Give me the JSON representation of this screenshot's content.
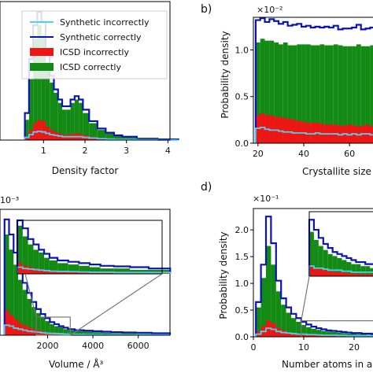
{
  "figure": {
    "panel_labels": [
      "b)",
      "d)"
    ],
    "legend_items": [
      {
        "label": "Synthetic incorrectly",
        "kind": "line",
        "color": "#4fd0f0"
      },
      {
        "label": "Synthetic correctly",
        "kind": "line",
        "color": "#0a14b4"
      },
      {
        "label": "ICSD incorrectly",
        "kind": "patch",
        "color": "#f01414"
      },
      {
        "label": "ICSD correctly",
        "kind": "patch",
        "color": "#138a13"
      }
    ]
  },
  "chart_data": [
    {
      "id": "a",
      "type": "bar",
      "xlabel": "Density factor",
      "ylabel": "",
      "x_ticks": [
        "1",
        "2",
        "3",
        "4"
      ],
      "y_ticks": [],
      "xlim": [
        0.0,
        4.0
      ],
      "series": [
        {
          "name": "ICSD correctly",
          "x": [
            0.6,
            0.7,
            0.8,
            0.9,
            1.0,
            1.1,
            1.2,
            1.3,
            1.4,
            1.5,
            1.6,
            1.7,
            1.8,
            1.9,
            2.0,
            2.2,
            2.4,
            2.6,
            2.8,
            3.0,
            3.5,
            4.0
          ],
          "values": [
            0.3,
            0.9,
            1.5,
            1.7,
            1.55,
            1.15,
            0.85,
            0.7,
            0.55,
            0.45,
            0.45,
            0.55,
            0.6,
            0.55,
            0.4,
            0.25,
            0.15,
            0.1,
            0.06,
            0.04,
            0.02,
            0.01
          ]
        },
        {
          "name": "ICSD incorrectly",
          "x": [
            0.6,
            0.7,
            0.8,
            0.9,
            1.0,
            1.1,
            1.2,
            1.3,
            1.4,
            1.5,
            1.6,
            1.7,
            1.8,
            1.9,
            2.0,
            2.2,
            2.4,
            2.6,
            2.8,
            3.0,
            3.5,
            4.0
          ],
          "values": [
            0.05,
            0.15,
            0.25,
            0.3,
            0.28,
            0.2,
            0.15,
            0.12,
            0.1,
            0.08,
            0.08,
            0.09,
            0.1,
            0.09,
            0.07,
            0.05,
            0.03,
            0.02,
            0.01,
            0.01,
            0.0,
            0.0
          ]
        },
        {
          "name": "Synthetic correctly",
          "x": [
            0.6,
            0.7,
            0.8,
            0.9,
            1.0,
            1.1,
            1.2,
            1.3,
            1.4,
            1.5,
            1.6,
            1.7,
            1.8,
            1.9,
            2.0,
            2.2,
            2.4,
            2.6,
            2.8,
            3.0,
            3.5,
            4.0
          ],
          "values": [
            0.4,
            1.2,
            1.7,
            1.9,
            1.75,
            1.3,
            0.95,
            0.75,
            0.6,
            0.5,
            0.5,
            0.6,
            0.65,
            0.6,
            0.45,
            0.28,
            0.17,
            0.11,
            0.07,
            0.05,
            0.02,
            0.01
          ]
        },
        {
          "name": "Synthetic incorrectly",
          "x": [
            0.6,
            0.7,
            0.8,
            0.9,
            1.0,
            1.1,
            1.2,
            1.3,
            1.4,
            1.5,
            1.6,
            1.7,
            1.8,
            1.9,
            2.0,
            2.2,
            2.4,
            2.6,
            2.8,
            3.0,
            3.5,
            4.0
          ],
          "values": [
            0.04,
            0.08,
            0.12,
            0.13,
            0.12,
            0.1,
            0.08,
            0.07,
            0.06,
            0.05,
            0.05,
            0.05,
            0.05,
            0.05,
            0.04,
            0.03,
            0.02,
            0.015,
            0.01,
            0.01,
            0.005,
            0.0
          ]
        }
      ]
    },
    {
      "id": "b",
      "type": "bar",
      "xlabel": "Crystallite size",
      "ylabel": "Probability density",
      "multiplier": "×10⁻²",
      "x_ticks": [
        "20",
        "40",
        "60"
      ],
      "y_ticks": [
        "0.0",
        "0.5",
        "1.0"
      ],
      "xlim": [
        18,
        73
      ],
      "ylim": [
        0,
        1.35
      ],
      "series": [
        {
          "name": "ICSD correctly",
          "x": [
            20,
            22,
            24,
            26,
            28,
            30,
            32,
            34,
            36,
            38,
            40,
            42,
            44,
            46,
            48,
            50,
            52,
            54,
            56,
            58,
            60,
            62,
            64,
            66,
            68,
            70
          ],
          "values": [
            1.08,
            1.12,
            1.1,
            1.1,
            1.08,
            1.06,
            1.08,
            1.05,
            1.05,
            1.06,
            1.06,
            1.06,
            1.05,
            1.05,
            1.06,
            1.05,
            1.05,
            1.06,
            1.05,
            1.04,
            1.04,
            1.04,
            1.06,
            1.04,
            1.04,
            1.05
          ]
        },
        {
          "name": "ICSD incorrectly",
          "x": [
            20,
            22,
            24,
            26,
            28,
            30,
            32,
            34,
            36,
            38,
            40,
            42,
            44,
            46,
            48,
            50,
            52,
            54,
            56,
            58,
            60,
            62,
            64,
            66,
            68,
            70
          ],
          "values": [
            0.3,
            0.32,
            0.3,
            0.3,
            0.28,
            0.28,
            0.27,
            0.26,
            0.25,
            0.24,
            0.23,
            0.22,
            0.22,
            0.22,
            0.21,
            0.2,
            0.2,
            0.2,
            0.19,
            0.19,
            0.2,
            0.19,
            0.18,
            0.19,
            0.2,
            0.18
          ]
        },
        {
          "name": "Synthetic correctly",
          "x": [
            20,
            22,
            24,
            26,
            28,
            30,
            32,
            34,
            36,
            38,
            40,
            42,
            44,
            46,
            48,
            50,
            52,
            54,
            56,
            58,
            60,
            62,
            64,
            66,
            68,
            70
          ],
          "values": [
            1.32,
            1.34,
            1.3,
            1.33,
            1.31,
            1.28,
            1.3,
            1.26,
            1.27,
            1.28,
            1.25,
            1.26,
            1.24,
            1.25,
            1.24,
            1.25,
            1.24,
            1.26,
            1.22,
            1.23,
            1.23,
            1.24,
            1.27,
            1.22,
            1.23,
            1.24
          ]
        },
        {
          "name": "Synthetic incorrectly",
          "x": [
            20,
            22,
            24,
            26,
            28,
            30,
            32,
            34,
            36,
            38,
            40,
            42,
            44,
            46,
            48,
            50,
            52,
            54,
            56,
            58,
            60,
            62,
            64,
            66,
            68,
            70
          ],
          "values": [
            0.16,
            0.17,
            0.15,
            0.14,
            0.14,
            0.13,
            0.12,
            0.12,
            0.11,
            0.11,
            0.11,
            0.1,
            0.1,
            0.11,
            0.1,
            0.1,
            0.1,
            0.1,
            0.09,
            0.1,
            0.09,
            0.1,
            0.09,
            0.1,
            0.1,
            0.09
          ]
        }
      ]
    },
    {
      "id": "c",
      "type": "bar",
      "xlabel": "Volume / Å³",
      "ylabel": "",
      "multiplier": "10⁻³",
      "x_ticks": [
        "2000",
        "4000",
        "6000"
      ],
      "y_ticks": [],
      "xlim": [
        0,
        7200
      ],
      "series": [
        {
          "name": "ICSD correctly",
          "x": [
            200,
            400,
            600,
            800,
            1000,
            1200,
            1400,
            1600,
            1800,
            2000,
            2200,
            2400,
            2600,
            2800,
            3000,
            3400,
            3800,
            4200,
            4600,
            5000,
            5600,
            6200,
            7000
          ],
          "values": [
            1.0,
            0.85,
            0.7,
            0.55,
            0.45,
            0.36,
            0.28,
            0.22,
            0.18,
            0.14,
            0.11,
            0.09,
            0.08,
            0.06,
            0.05,
            0.04,
            0.035,
            0.03,
            0.025,
            0.02,
            0.02,
            0.015,
            0.015
          ]
        },
        {
          "name": "ICSD incorrectly",
          "x": [
            200,
            400,
            600,
            800,
            1000,
            1200,
            1400,
            1600,
            1800,
            2000,
            2200,
            2400,
            2600,
            2800,
            3000,
            3400,
            3800,
            4200,
            4600,
            5000,
            5600,
            6200,
            7000
          ],
          "values": [
            0.25,
            0.2,
            0.16,
            0.12,
            0.1,
            0.08,
            0.06,
            0.05,
            0.04,
            0.03,
            0.025,
            0.02,
            0.018,
            0.015,
            0.012,
            0.01,
            0.008,
            0.007,
            0.006,
            0.005,
            0.005,
            0.004,
            0.004
          ]
        },
        {
          "name": "Synthetic correctly",
          "x": [
            200,
            400,
            600,
            800,
            1000,
            1200,
            1400,
            1600,
            1800,
            2000,
            2200,
            2400,
            2600,
            2800,
            3000,
            3400,
            3800,
            4200,
            4600,
            5000,
            5600,
            6200,
            7000
          ],
          "values": [
            1.15,
            1.0,
            0.82,
            0.65,
            0.52,
            0.42,
            0.33,
            0.26,
            0.21,
            0.17,
            0.13,
            0.11,
            0.09,
            0.075,
            0.06,
            0.05,
            0.045,
            0.04,
            0.035,
            0.03,
            0.028,
            0.025,
            0.02
          ]
        },
        {
          "name": "Synthetic incorrectly",
          "x": [
            200,
            400,
            600,
            800,
            1000,
            1200,
            1400,
            1600,
            1800,
            2000,
            2200,
            2400,
            2600,
            2800,
            3000,
            3400,
            3800,
            4200,
            4600,
            5000,
            5600,
            6200,
            7000
          ],
          "values": [
            0.1,
            0.09,
            0.07,
            0.06,
            0.05,
            0.04,
            0.035,
            0.03,
            0.025,
            0.02,
            0.018,
            0.016,
            0.014,
            0.012,
            0.01,
            0.009,
            0.008,
            0.007,
            0.006,
            0.006,
            0.005,
            0.005,
            0.005
          ]
        }
      ]
    },
    {
      "id": "d",
      "type": "bar",
      "xlabel": "Number atoms in a",
      "ylabel": "Probability density",
      "multiplier": "×10⁻¹",
      "x_ticks": [
        "0",
        "10",
        "20"
      ],
      "y_ticks": [
        "0.0",
        "0.5",
        "1.0",
        "1.5",
        "2.0"
      ],
      "xlim": [
        0,
        25
      ],
      "ylim": [
        0,
        2.4
      ],
      "series": [
        {
          "name": "ICSD correctly",
          "x": [
            1,
            2,
            3,
            4,
            5,
            6,
            7,
            8,
            9,
            10,
            11,
            12,
            13,
            14,
            15,
            16,
            17,
            18,
            19,
            20,
            21,
            22,
            23,
            24
          ],
          "values": [
            0.55,
            1.1,
            1.7,
            1.35,
            0.85,
            0.6,
            0.45,
            0.35,
            0.28,
            0.22,
            0.18,
            0.15,
            0.13,
            0.11,
            0.1,
            0.09,
            0.08,
            0.07,
            0.06,
            0.06,
            0.05,
            0.05,
            0.04,
            0.04
          ]
        },
        {
          "name": "ICSD incorrectly",
          "x": [
            1,
            2,
            3,
            4,
            5,
            6,
            7,
            8,
            9,
            10,
            11,
            12,
            13,
            14,
            15,
            16,
            17,
            18,
            19,
            20,
            21,
            22,
            23,
            24
          ],
          "values": [
            0.1,
            0.2,
            0.3,
            0.25,
            0.17,
            0.12,
            0.09,
            0.07,
            0.06,
            0.05,
            0.04,
            0.035,
            0.03,
            0.025,
            0.02,
            0.02,
            0.018,
            0.015,
            0.013,
            0.012,
            0.01,
            0.01,
            0.01,
            0.01
          ]
        },
        {
          "name": "Synthetic correctly",
          "x": [
            1,
            2,
            3,
            4,
            5,
            6,
            7,
            8,
            9,
            10,
            11,
            12,
            13,
            14,
            15,
            16,
            17,
            18,
            19,
            20,
            21,
            22,
            23,
            24
          ],
          "values": [
            0.65,
            1.35,
            2.25,
            1.75,
            1.05,
            0.72,
            0.55,
            0.43,
            0.35,
            0.28,
            0.23,
            0.19,
            0.16,
            0.14,
            0.12,
            0.11,
            0.1,
            0.09,
            0.08,
            0.07,
            0.07,
            0.06,
            0.06,
            0.05
          ]
        },
        {
          "name": "Synthetic incorrectly",
          "x": [
            1,
            2,
            3,
            4,
            5,
            6,
            7,
            8,
            9,
            10,
            11,
            12,
            13,
            14,
            15,
            16,
            17,
            18,
            19,
            20,
            21,
            22,
            23,
            24
          ],
          "values": [
            0.05,
            0.1,
            0.16,
            0.14,
            0.1,
            0.08,
            0.07,
            0.06,
            0.05,
            0.05,
            0.04,
            0.04,
            0.035,
            0.03,
            0.03,
            0.03,
            0.025,
            0.025,
            0.02,
            0.02,
            0.02,
            0.02,
            0.02,
            0.02
          ]
        }
      ]
    }
  ]
}
